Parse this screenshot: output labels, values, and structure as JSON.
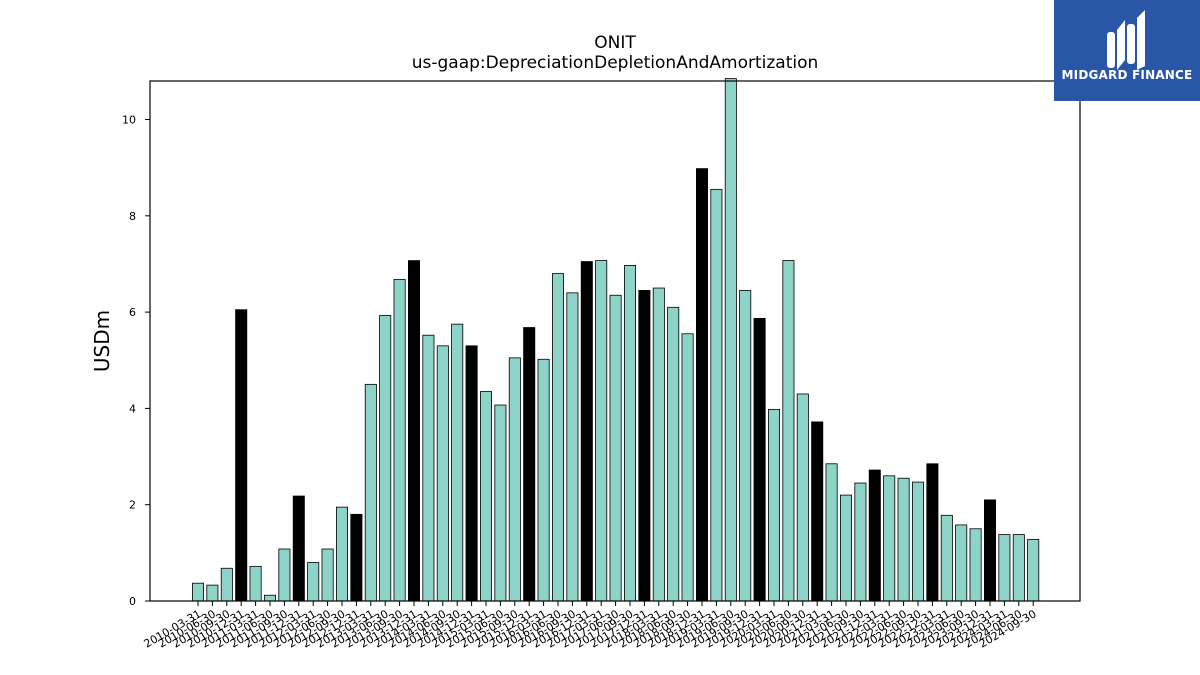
{
  "chart_data": {
    "type": "bar",
    "title": "ONIT",
    "subtitle": "us-gaap:DepreciationDepletionAndAmortization",
    "xlabel": "",
    "ylabel": "USDm",
    "ylim": [
      0,
      10.8
    ],
    "yticks": [
      0,
      2,
      4,
      6,
      8,
      10
    ],
    "grid": false,
    "colors": {
      "quarter": "#8dd3c7",
      "year_end": "#000000",
      "edge": "#000000"
    },
    "categories": [
      "2010-03-31",
      "2010-06-30",
      "2010-09-30",
      "2010-12-31",
      "2011-03-31",
      "2011-06-30",
      "2011-09-30",
      "2011-12-31",
      "2012-03-31",
      "2012-06-30",
      "2012-09-30",
      "2012-12-31",
      "2013-03-31",
      "2013-06-30",
      "2013-09-30",
      "2013-12-31",
      "2014-03-31",
      "2014-06-30",
      "2014-09-30",
      "2014-12-31",
      "2015-03-31",
      "2015-06-30",
      "2015-09-30",
      "2015-12-31",
      "2016-03-31",
      "2016-06-30",
      "2016-09-30",
      "2016-12-31",
      "2017-03-31",
      "2017-06-30",
      "2017-09-30",
      "2017-12-31",
      "2018-03-31",
      "2018-06-30",
      "2018-09-30",
      "2018-12-31",
      "2019-03-31",
      "2019-06-30",
      "2019-09-30",
      "2019-12-31",
      "2020-03-31",
      "2020-06-30",
      "2020-09-30",
      "2020-12-31",
      "2021-03-31",
      "2021-06-30",
      "2021-09-30",
      "2021-12-31",
      "2022-03-31",
      "2022-06-30",
      "2022-09-30",
      "2022-12-31",
      "2023-03-31",
      "2023-06-30",
      "2023-09-30",
      "2023-12-31",
      "2024-03-31",
      "2024-06-30",
      "2024-09-30"
    ],
    "values": [
      0.37,
      0.33,
      0.68,
      6.05,
      0.72,
      0.12,
      1.08,
      2.18,
      0.8,
      1.08,
      1.95,
      1.8,
      4.5,
      5.93,
      6.68,
      7.07,
      5.52,
      5.3,
      5.75,
      5.3,
      4.35,
      4.07,
      5.05,
      5.68,
      5.02,
      6.8,
      6.4,
      7.05,
      7.07,
      6.35,
      6.97,
      6.45,
      6.5,
      6.1,
      5.55,
      8.98,
      8.55,
      10.85,
      6.45,
      5.87,
      3.98,
      7.07,
      4.3,
      3.72,
      2.85,
      2.2,
      2.45,
      2.72,
      2.6,
      2.55,
      2.47,
      2.85,
      1.78,
      1.58,
      1.5,
      2.1,
      1.38,
      1.38,
      1.28
    ],
    "year_end": [
      false,
      false,
      false,
      true,
      false,
      false,
      false,
      true,
      false,
      false,
      false,
      true,
      false,
      false,
      false,
      true,
      false,
      false,
      false,
      true,
      false,
      false,
      false,
      true,
      false,
      false,
      false,
      true,
      false,
      false,
      false,
      true,
      false,
      false,
      false,
      true,
      false,
      false,
      false,
      true,
      false,
      false,
      false,
      true,
      false,
      false,
      false,
      true,
      false,
      false,
      false,
      true,
      false,
      false,
      false,
      true,
      false,
      false,
      false
    ]
  },
  "logo": {
    "text": "MIDGARD FINANCE",
    "icon": "midgard-logo-icon",
    "background": "#2a56a8"
  }
}
